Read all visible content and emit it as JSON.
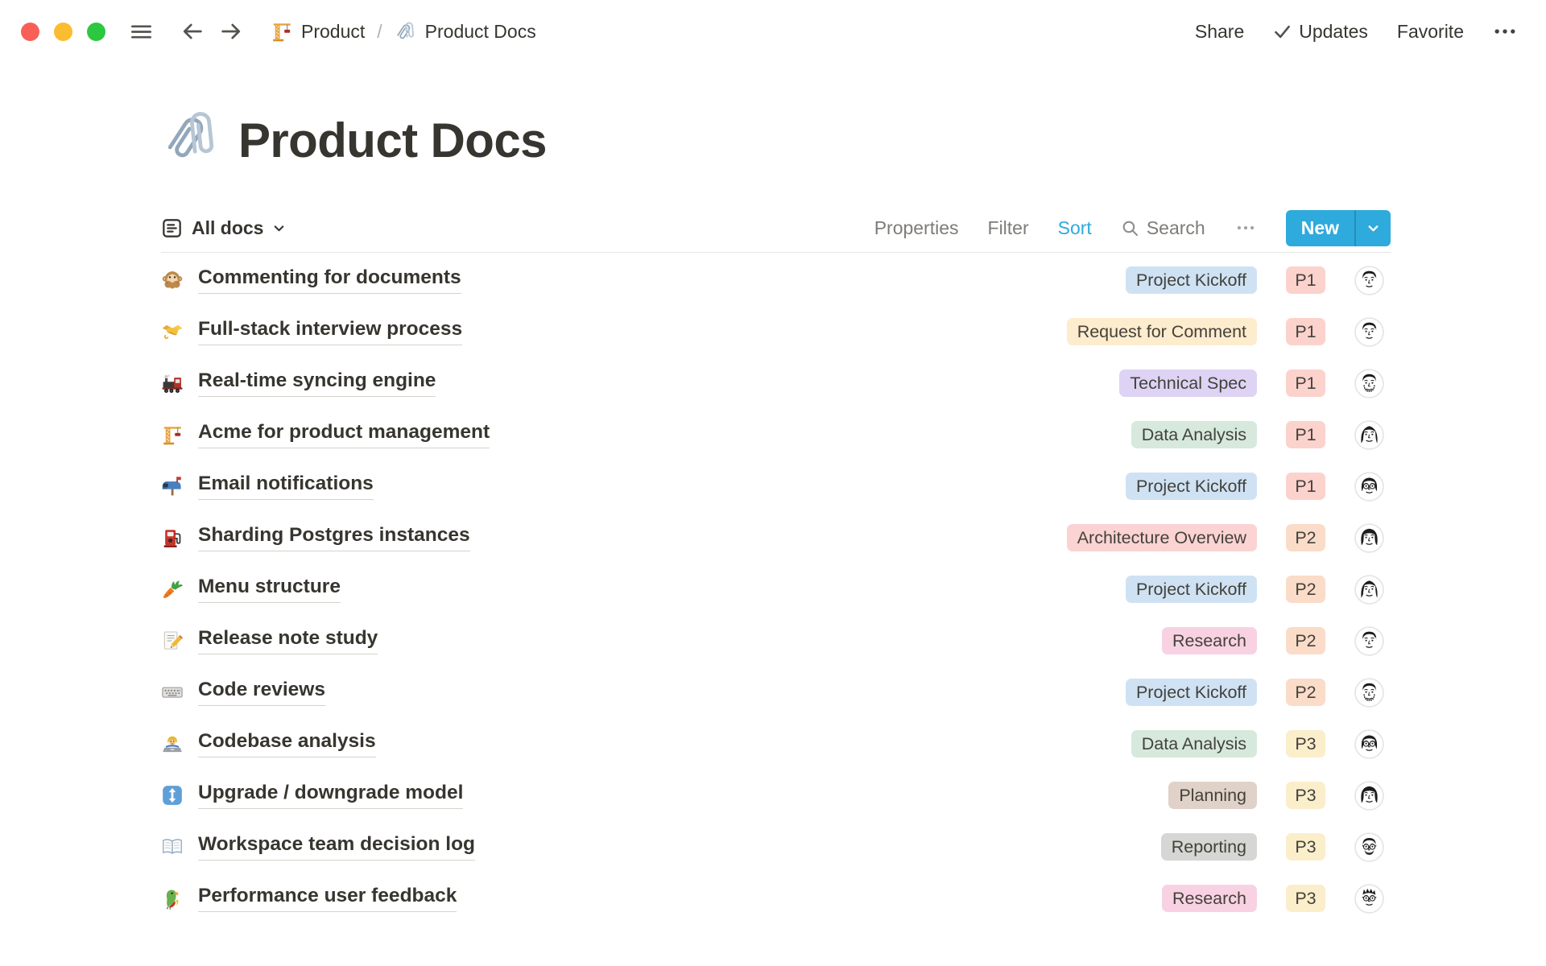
{
  "titlebar": {
    "window_controls": [
      "close",
      "minimize",
      "zoom"
    ],
    "nav_icons": [
      "hamburger-menu",
      "back-arrow",
      "forward-arrow"
    ],
    "breadcrumb": {
      "level1": {
        "icon": "building-crane",
        "label": "Product"
      },
      "separator": "/",
      "level2": {
        "icon": "linked-paperclips",
        "label": "Product Docs"
      }
    },
    "share": "Share",
    "updates": "Updates",
    "favorite": "Favorite",
    "more": "more-dots"
  },
  "page": {
    "icon": "linked-paperclips",
    "title": "Product Docs"
  },
  "toolbar": {
    "view_label": "All docs",
    "properties": "Properties",
    "filter": "Filter",
    "sort": "Sort",
    "sort_active": true,
    "search_label": "Search",
    "new_label": "New"
  },
  "colors": {
    "accent": "#2eaadc",
    "tag_text": "#44413b",
    "tags": {
      "blue": "#cfe2f4",
      "yellow": "#fdeccd",
      "purple": "#ded3f4",
      "green": "#d6e9dc",
      "red": "#fbd3d3",
      "pink": "#f8d2e2",
      "brown": "#e0d2c8",
      "gray": "#d6d6d4"
    },
    "priorities": {
      "P1": "#fcd2cd",
      "P2": "#fadcc8",
      "P3": "#faeecb"
    }
  },
  "rows": [
    {
      "icon": "speak-no-evil-monkey",
      "title": "Commenting for documents",
      "tag": "Project Kickoff",
      "tag_color": "blue",
      "priority": "P1",
      "avatar": "man-dark-hair"
    },
    {
      "icon": "handshake",
      "title": "Full-stack interview process",
      "tag": "Request for Comment",
      "tag_color": "yellow",
      "priority": "P1",
      "avatar": "man-dark-hair"
    },
    {
      "icon": "locomotive",
      "title": "Real-time syncing engine",
      "tag": "Technical Spec",
      "tag_color": "purple",
      "priority": "P1",
      "avatar": "man-beard"
    },
    {
      "icon": "building-crane",
      "title": "Acme for product management",
      "tag": "Data Analysis",
      "tag_color": "green",
      "priority": "P1",
      "avatar": "woman-long-hair"
    },
    {
      "icon": "mailbox",
      "title": "Email notifications",
      "tag": "Project Kickoff",
      "tag_color": "blue",
      "priority": "P1",
      "avatar": "woman-glasses"
    },
    {
      "icon": "fuel-pump",
      "title": "Sharding Postgres instances",
      "tag": "Architecture Overview",
      "tag_color": "red",
      "priority": "P2",
      "avatar": "woman-bob"
    },
    {
      "icon": "carrot",
      "title": "Menu structure",
      "tag": "Project Kickoff",
      "tag_color": "blue",
      "priority": "P2",
      "avatar": "woman-long-hair"
    },
    {
      "icon": "memo",
      "title": "Release note study",
      "tag": "Research",
      "tag_color": "pink",
      "priority": "P2",
      "avatar": "man-dark-hair"
    },
    {
      "icon": "keyboard",
      "title": "Code reviews",
      "tag": "Project Kickoff",
      "tag_color": "blue",
      "priority": "P2",
      "avatar": "man-beard"
    },
    {
      "icon": "technologist",
      "title": "Codebase analysis",
      "tag": "Data Analysis",
      "tag_color": "green",
      "priority": "P3",
      "avatar": "woman-glasses"
    },
    {
      "icon": "up-down-arrow",
      "title": "Upgrade / downgrade model",
      "tag": "Planning",
      "tag_color": "brown",
      "priority": "P3",
      "avatar": "woman-bob"
    },
    {
      "icon": "open-book",
      "title": "Workspace team decision log",
      "tag": "Reporting",
      "tag_color": "gray",
      "priority": "P3",
      "avatar": "man-glasses-beard"
    },
    {
      "icon": "parrot",
      "title": "Performance user feedback",
      "tag": "Research",
      "tag_color": "pink",
      "priority": "P3",
      "avatar": "man-glasses-spiky"
    }
  ]
}
